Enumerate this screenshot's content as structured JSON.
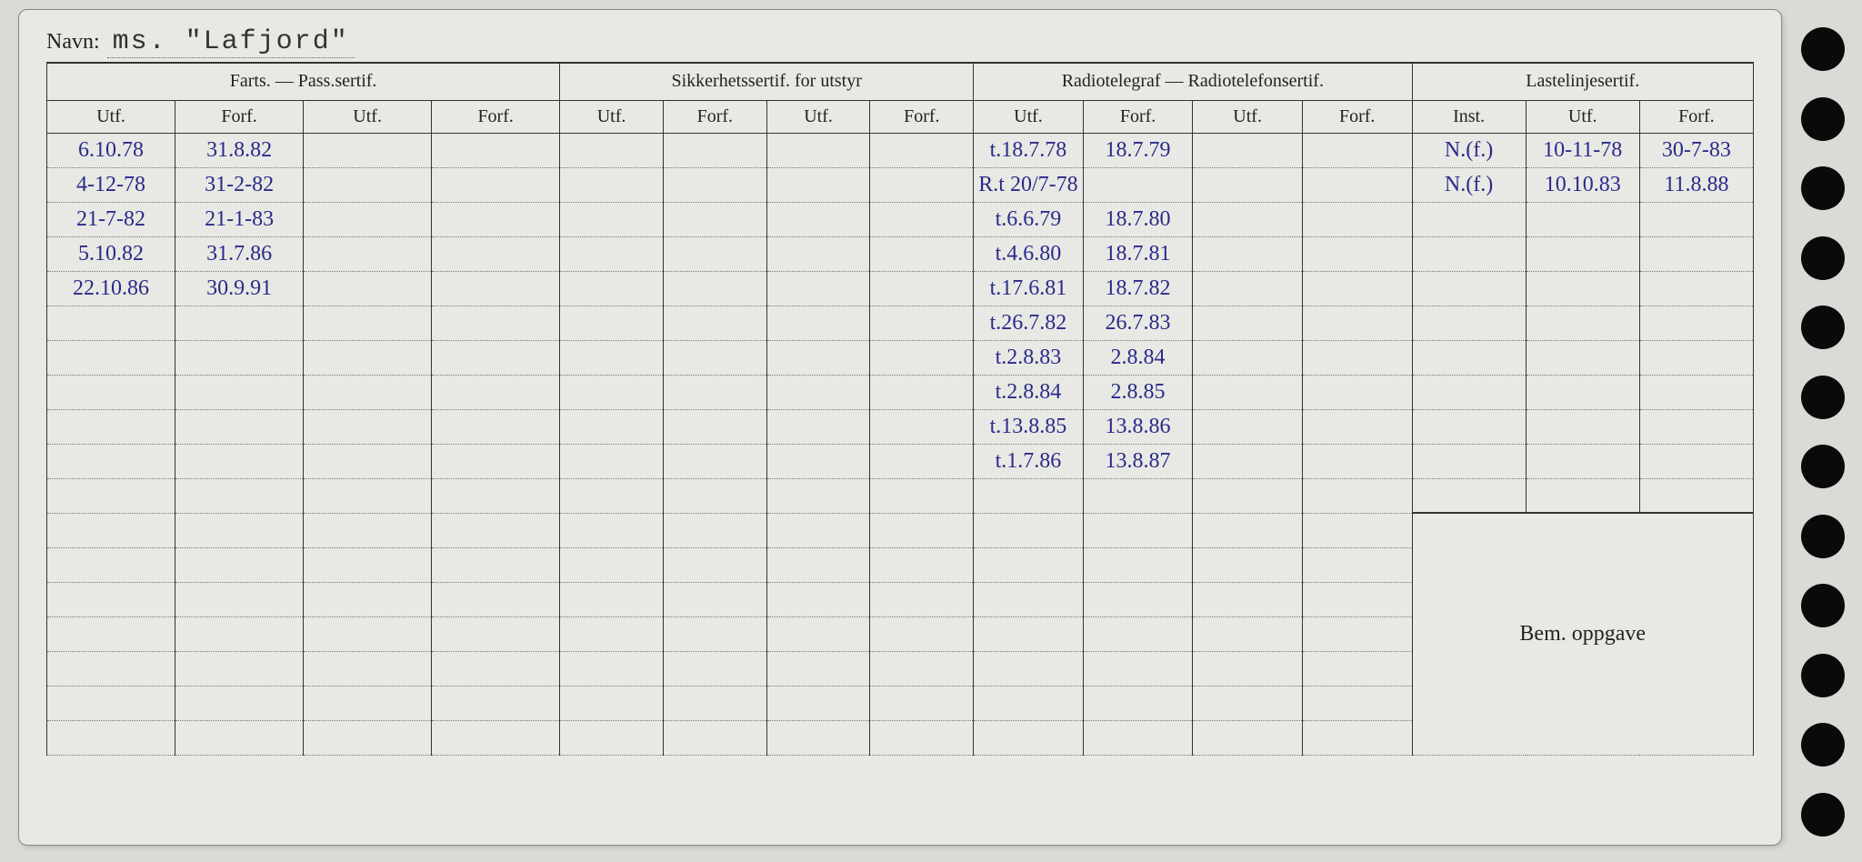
{
  "labels": {
    "navn": "Navn:",
    "farts": "Farts. — Pass.sertif.",
    "sikkerhet": "Sikkerhetssertif. for utstyr",
    "radio": "Radiotelegraf — Radiotelefonsertif.",
    "laste": "Lastelinjesertif.",
    "utf": "Utf.",
    "forf": "Forf.",
    "inst": "Inst.",
    "bem": "Bem. oppgave"
  },
  "navn_value": "ms. \"Lafjord\"",
  "rows": [
    {
      "farts_utf1": "6.10.78",
      "farts_forf1": "31.8.82",
      "radio_utf1": "t.18.7.78",
      "radio_forf1": "18.7.79",
      "laste_inst": "N.(f.)",
      "laste_utf": "10-11-78",
      "laste_forf": "30-7-83"
    },
    {
      "farts_utf1": "4-12-78",
      "farts_forf1": "31-2-82",
      "radio_utf1": "R.t 20/7-78",
      "laste_inst": "N.(f.)",
      "laste_utf": "10.10.83",
      "laste_forf": "11.8.88"
    },
    {
      "farts_utf1": "21-7-82",
      "farts_forf1": "21-1-83",
      "faded": true,
      "radio_utf1": "t.6.6.79",
      "radio_forf1": "18.7.80"
    },
    {
      "farts_utf1": "5.10.82",
      "farts_forf1": "31.7.86",
      "radio_utf1": "t.4.6.80",
      "radio_forf1": "18.7.81"
    },
    {
      "farts_utf1": "22.10.86",
      "farts_forf1": "30.9.91",
      "radio_utf1": "t.17.6.81",
      "radio_forf1": "18.7.82"
    },
    {
      "radio_utf1": "t.26.7.82",
      "radio_forf1": "26.7.83"
    },
    {
      "radio_utf1": "t.2.8.83",
      "radio_forf1": "2.8.84"
    },
    {
      "radio_utf1": "t.2.8.84",
      "radio_forf1": "2.8.85"
    },
    {
      "radio_utf1": "t.13.8.85",
      "radio_forf1": "13.8.86"
    },
    {
      "radio_utf1": "t.1.7.86",
      "radio_forf1": "13.8.87"
    },
    {},
    {}
  ],
  "bem_row_index": 11,
  "extra_rows": 6,
  "colors": {
    "page_bg": "#d9dbd6",
    "card_bg": "#e8e9e4",
    "ink": "#2a2a8a",
    "ink_faded": "#8a8aa8",
    "print": "#222222",
    "border": "#333333",
    "dotted": "#777777",
    "hole": "#0a0a0a"
  },
  "punch_holes": 12
}
